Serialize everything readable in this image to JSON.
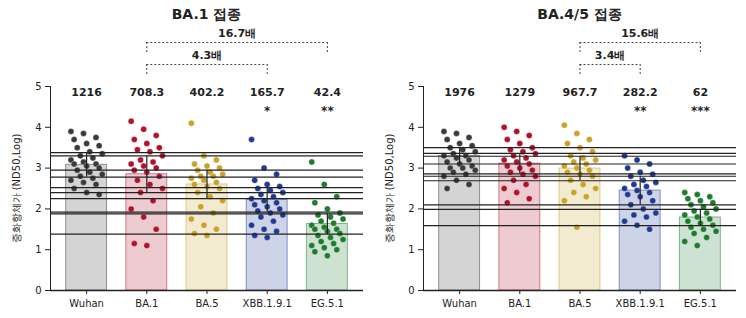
{
  "chart_data": [
    {
      "type": "bar",
      "title": "BA.1 접종",
      "ylabel": "중화항체가 (ND50,Log)",
      "categories": [
        "Wuhan",
        "BA.1",
        "BA.5",
        "XBB.1.9.1",
        "EG.5.1"
      ],
      "values": [
        3.08,
        2.85,
        2.6,
        2.22,
        1.63
      ],
      "errors": [
        0.3,
        0.45,
        0.35,
        0.3,
        0.25
      ],
      "colors": [
        "#3a3a3a",
        "#b0122a",
        "#c9a227",
        "#1f3a93",
        "#1e7b2e"
      ],
      "points": [
        [
          3.9,
          3.85,
          3.75,
          3.7,
          3.6,
          3.55,
          3.5,
          3.4,
          3.35,
          3.3,
          3.25,
          3.2,
          3.15,
          3.1,
          3.1,
          3.05,
          3.0,
          2.95,
          2.9,
          2.85,
          2.8,
          2.75,
          2.7,
          2.65,
          2.6,
          2.5,
          2.4,
          2.35
        ],
        [
          4.15,
          3.95,
          3.8,
          3.7,
          3.6,
          3.5,
          3.45,
          3.4,
          3.3,
          3.2,
          3.15,
          3.1,
          3.05,
          3.0,
          2.95,
          2.9,
          2.8,
          2.7,
          2.6,
          2.5,
          2.4,
          2.2,
          2.0,
          1.8,
          1.5,
          1.15,
          1.1
        ],
        [
          4.1,
          3.3,
          3.2,
          3.1,
          3.05,
          3.0,
          2.95,
          2.9,
          2.85,
          2.8,
          2.8,
          2.75,
          2.7,
          2.65,
          2.6,
          2.55,
          2.5,
          2.4,
          2.3,
          2.2,
          2.05,
          1.9,
          1.75,
          1.6,
          1.5,
          1.4,
          1.35
        ],
        [
          3.7,
          3.0,
          2.85,
          2.7,
          2.6,
          2.55,
          2.5,
          2.45,
          2.4,
          2.35,
          2.3,
          2.25,
          2.2,
          2.15,
          2.1,
          2.05,
          2.0,
          1.95,
          1.9,
          1.85,
          1.8,
          1.7,
          1.6,
          1.5,
          1.45,
          1.35,
          1.3
        ],
        [
          3.15,
          2.6,
          2.3,
          2.15,
          2.0,
          1.9,
          1.85,
          1.8,
          1.75,
          1.7,
          1.65,
          1.6,
          1.55,
          1.5,
          1.5,
          1.45,
          1.4,
          1.35,
          1.3,
          1.25,
          1.2,
          1.15,
          1.1,
          1.05,
          1.0,
          0.95,
          0.85
        ]
      ],
      "gmt": [
        1216,
        708.3,
        402.2,
        165.7,
        42.4
      ],
      "significance": [
        null,
        null,
        null,
        "*",
        "**"
      ],
      "comparisons": [
        {
          "from": "BA.1",
          "to": "XBB.1.9.1",
          "label": "4.3배"
        },
        {
          "from": "BA.1",
          "to": "EG.5.1",
          "label": "16.7배"
        }
      ],
      "ylim": [
        0,
        5
      ],
      "yticks": [
        0,
        1,
        2,
        3,
        4,
        5
      ]
    },
    {
      "type": "bar",
      "title": "BA.4/5 접종",
      "ylabel": "중화항체가 (ND50,Log)",
      "categories": [
        "Wuhan",
        "BA.1",
        "BA.5",
        "XBB.1.9.1",
        "EG.5.1"
      ],
      "values": [
        3.3,
        3.11,
        2.99,
        2.45,
        1.79
      ],
      "errors": [
        0.2,
        0.25,
        0.3,
        0.35,
        0.2
      ],
      "colors": [
        "#3a3a3a",
        "#b0122a",
        "#c9a227",
        "#1f3a93",
        "#1e7b2e"
      ],
      "points": [
        [
          3.9,
          3.85,
          3.75,
          3.7,
          3.6,
          3.55,
          3.5,
          3.45,
          3.4,
          3.35,
          3.3,
          3.3,
          3.25,
          3.2,
          3.15,
          3.1,
          3.05,
          3.0,
          3.0,
          2.95,
          2.9,
          2.85,
          2.8,
          2.7,
          2.6,
          2.5
        ],
        [
          4.0,
          3.9,
          3.8,
          3.7,
          3.6,
          3.5,
          3.45,
          3.4,
          3.35,
          3.3,
          3.25,
          3.2,
          3.15,
          3.1,
          3.05,
          3.0,
          2.95,
          2.9,
          2.85,
          2.8,
          2.7,
          2.6,
          2.5,
          2.4,
          2.25,
          2.15
        ],
        [
          4.05,
          3.85,
          3.7,
          3.6,
          3.5,
          3.4,
          3.3,
          3.25,
          3.2,
          3.15,
          3.1,
          3.05,
          3.0,
          2.95,
          2.9,
          2.85,
          2.8,
          2.7,
          2.6,
          2.5,
          2.4,
          2.3,
          2.2,
          1.55
        ],
        [
          3.3,
          3.2,
          3.1,
          3.0,
          2.9,
          2.85,
          2.8,
          2.7,
          2.65,
          2.6,
          2.55,
          2.5,
          2.45,
          2.4,
          2.35,
          2.3,
          2.2,
          2.1,
          2.0,
          1.9,
          1.85,
          1.8,
          1.7,
          1.6,
          1.5
        ],
        [
          2.4,
          2.35,
          2.3,
          2.25,
          2.2,
          2.15,
          2.1,
          2.05,
          2.0,
          1.95,
          1.9,
          1.85,
          1.8,
          1.75,
          1.7,
          1.65,
          1.6,
          1.55,
          1.5,
          1.45,
          1.4,
          1.3,
          1.2,
          1.1
        ]
      ],
      "gmt": [
        1976,
        1279,
        967.7,
        282.2,
        62.0
      ],
      "significance": [
        null,
        null,
        null,
        "**",
        "***"
      ],
      "comparisons": [
        {
          "from": "BA.5",
          "to": "XBB.1.9.1",
          "label": "3.4배"
        },
        {
          "from": "BA.5",
          "to": "EG.5.1",
          "label": "15.6배"
        }
      ],
      "ylim": [
        0,
        5
      ],
      "yticks": [
        0,
        1,
        2,
        3,
        4,
        5
      ]
    }
  ]
}
